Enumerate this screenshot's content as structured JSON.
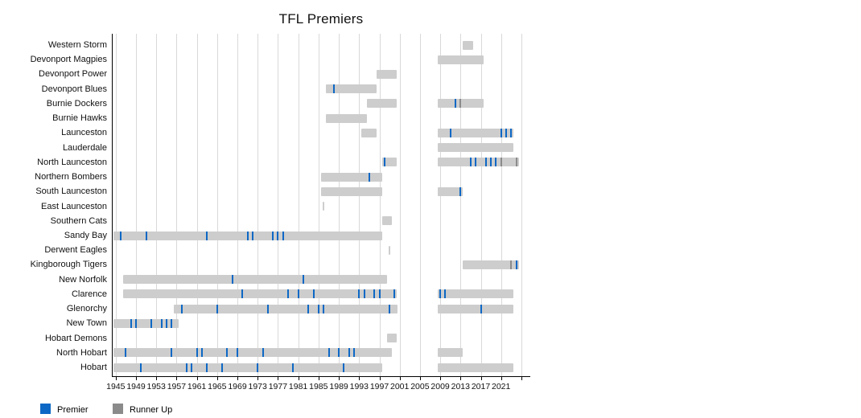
{
  "title": "TFL Premiers",
  "legend": {
    "premier_label": "Premier",
    "runner_up_label": "Runner Up"
  },
  "colors": {
    "premier": "#0d68c5",
    "runner_up": "#8b8b8b",
    "bar": "#cdcdcd",
    "gridline": "#d9d9d9",
    "axis": "#000000"
  },
  "axis": {
    "x_min": 1944.4,
    "x_max": 2026.6,
    "label_years": [
      1945,
      1949,
      1953,
      1957,
      1961,
      1965,
      1969,
      1973,
      1977,
      1981,
      1985,
      1989,
      1993,
      1997,
      2001,
      2005,
      2009,
      2013,
      2017,
      2021
    ],
    "grid_years": [
      1945,
      1949,
      1953,
      1957,
      1961,
      1965,
      1969,
      1973,
      1977,
      1981,
      1985,
      1989,
      1993,
      1997,
      2001,
      2005,
      2009,
      2013,
      2017,
      2021,
      2025
    ]
  },
  "chart_data": {
    "type": "bar",
    "title": "TFL Premiers",
    "xlabel": "",
    "ylabel": "",
    "x_range": [
      1945,
      2025
    ],
    "legend_position": "bottom-left",
    "grid": true,
    "teams": [
      {
        "name": "Western Storm",
        "bars": [
          [
            2014,
            2015
          ]
        ],
        "premiers": [],
        "runners": []
      },
      {
        "name": "Devonport Magpies",
        "bars": [
          [
            2009,
            2017
          ]
        ],
        "premiers": [],
        "runners": []
      },
      {
        "name": "Devonport Power",
        "bars": [
          [
            1997,
            2000
          ]
        ],
        "premiers": [],
        "runners": []
      },
      {
        "name": "Devonport Blues",
        "bars": [
          [
            1987,
            1996
          ]
        ],
        "premiers": [
          1988
        ],
        "runners": []
      },
      {
        "name": "Burnie Dockers",
        "bars": [
          [
            1995,
            2000
          ],
          [
            2009,
            2017
          ]
        ],
        "premiers": [
          2012
        ],
        "runners": [
          2013
        ]
      },
      {
        "name": "Burnie Hawks",
        "bars": [
          [
            1987,
            1994
          ]
        ],
        "premiers": [],
        "runners": []
      },
      {
        "name": "Launceston",
        "bars": [
          [
            1994,
            1996
          ],
          [
            2009,
            2023
          ]
        ],
        "premiers": [
          2011,
          2021,
          2022,
          2023
        ],
        "runners": []
      },
      {
        "name": "Lauderdale",
        "bars": [
          [
            2009,
            2023
          ]
        ],
        "premiers": [],
        "runners": []
      },
      {
        "name": "North Launceston",
        "bars": [
          [
            1998,
            2000
          ],
          [
            2009,
            2024
          ]
        ],
        "premiers": [
          1998,
          2015,
          2016,
          2018,
          2019,
          2020
        ],
        "runners": [
          2021,
          2024
        ]
      },
      {
        "name": "Northern Bombers",
        "bars": [
          [
            1986,
            1997
          ]
        ],
        "premiers": [
          1995
        ],
        "runners": []
      },
      {
        "name": "South Launceston",
        "bars": [
          [
            1986,
            1997
          ],
          [
            2009,
            2013
          ]
        ],
        "premiers": [
          2013
        ],
        "runners": []
      },
      {
        "name": "East Launceston",
        "bars": [
          [
            1986,
            1986
          ]
        ],
        "premiers": [],
        "runners": []
      },
      {
        "name": "Southern Cats",
        "bars": [
          [
            1998,
            1999
          ]
        ],
        "premiers": [],
        "runners": []
      },
      {
        "name": "Sandy Bay",
        "bars": [
          [
            1945,
            1997
          ]
        ],
        "premiers": [
          1946,
          1951,
          1963,
          1971,
          1972,
          1976,
          1977,
          1978
        ],
        "runners": []
      },
      {
        "name": "Derwent Eagles",
        "bars": [
          [
            1999,
            1999
          ]
        ],
        "premiers": [],
        "runners": []
      },
      {
        "name": "Kingborough Tigers",
        "bars": [
          [
            2014,
            2024
          ]
        ],
        "premiers": [
          2024
        ],
        "runners": [
          2023
        ]
      },
      {
        "name": "New Norfolk",
        "bars": [
          [
            1947,
            1998
          ]
        ],
        "premiers": [
          1968,
          1982
        ],
        "runners": []
      },
      {
        "name": "Clarence",
        "bars": [
          [
            1947,
            2000
          ],
          [
            2009,
            2023
          ]
        ],
        "premiers": [
          1970,
          1979,
          1981,
          1984,
          1993,
          1994,
          1996,
          1997,
          2000,
          2009,
          2010
        ],
        "runners": []
      },
      {
        "name": "Glenorchy",
        "bars": [
          [
            1957,
            2000
          ],
          [
            2009,
            2023
          ]
        ],
        "premiers": [
          1958,
          1965,
          1975,
          1983,
          1985,
          1986,
          1999,
          2017
        ],
        "runners": []
      },
      {
        "name": "New Town",
        "bars": [
          [
            1945,
            1957
          ]
        ],
        "premiers": [
          1948,
          1949,
          1952,
          1954,
          1955,
          1956
        ],
        "runners": []
      },
      {
        "name": "Hobart Demons",
        "bars": [
          [
            1999,
            2000
          ]
        ],
        "premiers": [],
        "runners": []
      },
      {
        "name": "North Hobart",
        "bars": [
          [
            1945,
            1999
          ],
          [
            2009,
            2013
          ]
        ],
        "premiers": [
          1947,
          1956,
          1961,
          1962,
          1967,
          1969,
          1974,
          1987,
          1989,
          1991,
          1992
        ],
        "runners": []
      },
      {
        "name": "Hobart",
        "bars": [
          [
            1945,
            1997
          ],
          [
            2009,
            2023
          ]
        ],
        "premiers": [
          1950,
          1959,
          1960,
          1963,
          1966,
          1973,
          1980,
          1990
        ],
        "runners": []
      }
    ]
  }
}
